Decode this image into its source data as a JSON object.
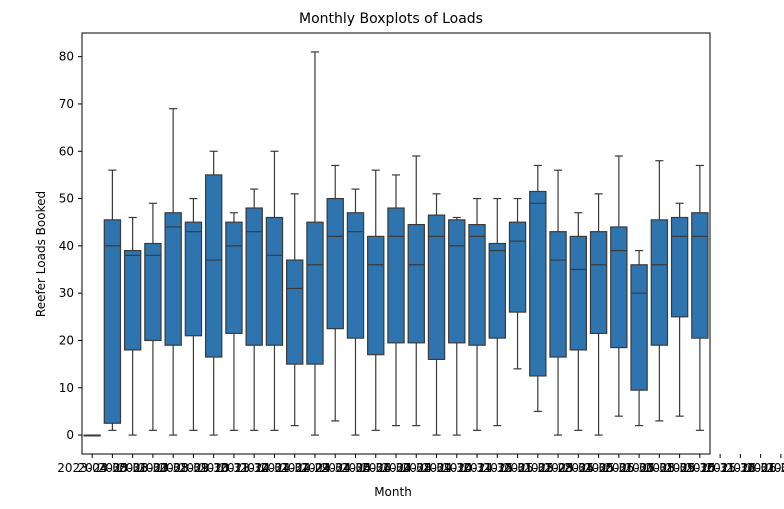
{
  "chart_data": {
    "type": "boxplot",
    "title": "Monthly Boxplots of Loads",
    "xlabel": "Month",
    "ylabel": "Reefer Loads Booked",
    "ylim": [
      -4,
      85
    ],
    "yticks": [
      0,
      10,
      20,
      30,
      40,
      50,
      60,
      70,
      80
    ],
    "grid": false,
    "color": "#2e75b0",
    "line_color": "#3a3a3a",
    "categories": [
      "2023-04-30",
      "2023-05-31",
      "2023-06-30",
      "2023-07-31",
      "2023-08-31",
      "2023-09-30",
      "2023-10-31",
      "2023-11-30",
      "2023-12-31",
      "2024-01-31",
      "2024-02-29",
      "2024-03-31",
      "2024-04-30",
      "2024-05-31",
      "2024-06-30",
      "2024-07-31",
      "2024-08-31",
      "2024-09-30",
      "2024-10-31",
      "2024-11-30",
      "2024-12-31",
      "2025-01-31",
      "2025-02-28",
      "2025-03-31",
      "2025-04-30",
      "2025-05-31",
      "2025-06-30",
      "2025-07-31",
      "2025-08-31",
      "2025-09-30",
      "2025-10-31",
      "2025-11-30",
      "2025-12-31",
      "2026-01-31",
      "2026-02-28",
      "2026-03-31",
      "2026-04-30",
      "2026-05-31",
      "2026-06-30",
      "2026-07-31",
      "2026-08-31",
      "2026-09-30",
      "2026-10-31",
      "2026-11-30",
      "2026-12-31",
      "2027-01-31",
      "2027-02-28"
    ],
    "visible_tick_text": [
      "2023-04-30",
      "2027-02-28"
    ],
    "boxes": [
      {
        "min": 0,
        "q1": 0,
        "median": 0,
        "q3": 0,
        "max": 0
      },
      {
        "min": 1,
        "q1": 2.5,
        "median": 40,
        "q3": 45.5,
        "max": 56
      },
      {
        "min": 0,
        "q1": 18,
        "median": 38,
        "q3": 39,
        "max": 46
      },
      {
        "min": 1,
        "q1": 20,
        "median": 38,
        "q3": 40.5,
        "max": 49
      },
      {
        "min": 0,
        "q1": 19,
        "median": 44,
        "q3": 47,
        "max": 69
      },
      {
        "min": 1,
        "q1": 21,
        "median": 43,
        "q3": 45,
        "max": 50
      },
      {
        "min": 0,
        "q1": 16.5,
        "median": 37,
        "q3": 55,
        "max": 60
      },
      {
        "min": 1,
        "q1": 21.5,
        "median": 40,
        "q3": 45,
        "max": 47
      },
      {
        "min": 1,
        "q1": 19,
        "median": 43,
        "q3": 48,
        "max": 52
      },
      {
        "min": 1,
        "q1": 19,
        "median": 38,
        "q3": 46,
        "max": 60
      },
      {
        "min": 2,
        "q1": 15,
        "median": 31,
        "q3": 37,
        "max": 51
      },
      {
        "min": 0,
        "q1": 15,
        "median": 36,
        "q3": 45,
        "max": 81
      },
      {
        "min": 3,
        "q1": 22.5,
        "median": 42,
        "q3": 50,
        "max": 57
      },
      {
        "min": 0,
        "q1": 20.5,
        "median": 43,
        "q3": 47,
        "max": 52
      },
      {
        "min": 1,
        "q1": 17,
        "median": 36,
        "q3": 42,
        "max": 56
      },
      {
        "min": 2,
        "q1": 19.5,
        "median": 42,
        "q3": 48,
        "max": 55
      },
      {
        "min": 2,
        "q1": 19.5,
        "median": 36,
        "q3": 44.5,
        "max": 59
      },
      {
        "min": 0,
        "q1": 16,
        "median": 42,
        "q3": 46.5,
        "max": 51
      },
      {
        "min": 0,
        "q1": 19.5,
        "median": 40,
        "q3": 45.5,
        "max": 46
      },
      {
        "min": 1,
        "q1": 19,
        "median": 42,
        "q3": 44.5,
        "max": 50
      },
      {
        "min": 2,
        "q1": 20.5,
        "median": 39,
        "q3": 40.5,
        "max": 50
      },
      {
        "min": 14,
        "q1": 26,
        "median": 41,
        "q3": 45,
        "max": 50
      },
      {
        "min": 5,
        "q1": 12.5,
        "median": 49,
        "q3": 51.5,
        "max": 57
      },
      {
        "min": 0,
        "q1": 16.5,
        "median": 37,
        "q3": 43,
        "max": 56
      },
      {
        "min": 1,
        "q1": 18,
        "median": 35,
        "q3": 42,
        "max": 47
      },
      {
        "min": 0,
        "q1": 21.5,
        "median": 36,
        "q3": 43,
        "max": 51
      },
      {
        "min": 4,
        "q1": 18.5,
        "median": 39,
        "q3": 44,
        "max": 59
      },
      {
        "min": 2,
        "q1": 9.5,
        "median": 30,
        "q3": 36,
        "max": 39
      },
      {
        "min": 3,
        "q1": 19,
        "median": 36,
        "q3": 45.5,
        "max": 58
      },
      {
        "min": 4,
        "q1": 25,
        "median": 42,
        "q3": 46,
        "max": 49
      },
      {
        "min": 1,
        "q1": 20.5,
        "median": 42,
        "q3": 47,
        "max": 57
      }
    ]
  }
}
